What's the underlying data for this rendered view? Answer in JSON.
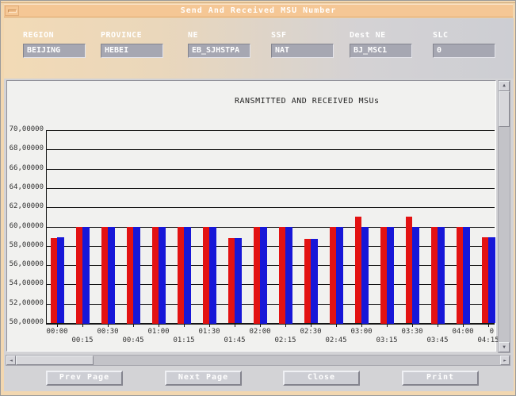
{
  "window": {
    "title": "Send And Received MSU Number",
    "titlebar_color": "#f5c795",
    "frame_color": "#f2d7b0"
  },
  "form": {
    "fields": [
      {
        "id": "region",
        "label": "REGION",
        "value": "BEIJING"
      },
      {
        "id": "province",
        "label": "PROVINCE",
        "value": "HEBEI"
      },
      {
        "id": "ne",
        "label": "NE",
        "value": "EB_SJHSTPA"
      },
      {
        "id": "ssf",
        "label": "SSF",
        "value": "NAT"
      },
      {
        "id": "dest-ne",
        "label": "Dest NE",
        "value": "BJ_MSC1"
      },
      {
        "id": "slc",
        "label": "SLC",
        "value": "0"
      }
    ]
  },
  "chart_data": {
    "type": "bar",
    "title": "RANSMITTED AND RECEIVED MSUs",
    "xlabel": "",
    "ylabel": "",
    "categories": [
      "00:00",
      "00:15",
      "00:30",
      "00:45",
      "01:00",
      "01:15",
      "01:30",
      "01:45",
      "02:00",
      "02:15",
      "02:30",
      "02:45",
      "03:00",
      "03:15",
      "03:30",
      "03:45",
      "04:00",
      "04:15"
    ],
    "series": [
      {
        "name": "transmitted",
        "color": "#e31212",
        "values": [
          58.8,
          60,
          60,
          60,
          60,
          60,
          60,
          58.8,
          60,
          60,
          58.7,
          60,
          61,
          60,
          61,
          60,
          60,
          58.9
        ]
      },
      {
        "name": "received",
        "color": "#1717d8",
        "values": [
          58.9,
          60,
          60,
          60,
          60,
          60,
          60,
          58.8,
          60,
          60,
          58.7,
          60,
          60,
          60,
          60,
          60,
          60,
          58.9
        ]
      }
    ],
    "ylim": [
      50,
      70
    ],
    "ytick_labels": [
      "70,00000",
      "68,00000",
      "66,00000",
      "64,00000",
      "62,00000",
      "60,00000",
      "58,00000",
      "56,00000",
      "54,00000",
      "52,00000",
      "50,00000"
    ],
    "x_edge_clipped_label": "0",
    "grid": "horizontal",
    "legend_position": "none"
  },
  "buttons": {
    "prev": "Prev Page",
    "next": "Next Page",
    "close": "Close",
    "print": "Print"
  }
}
